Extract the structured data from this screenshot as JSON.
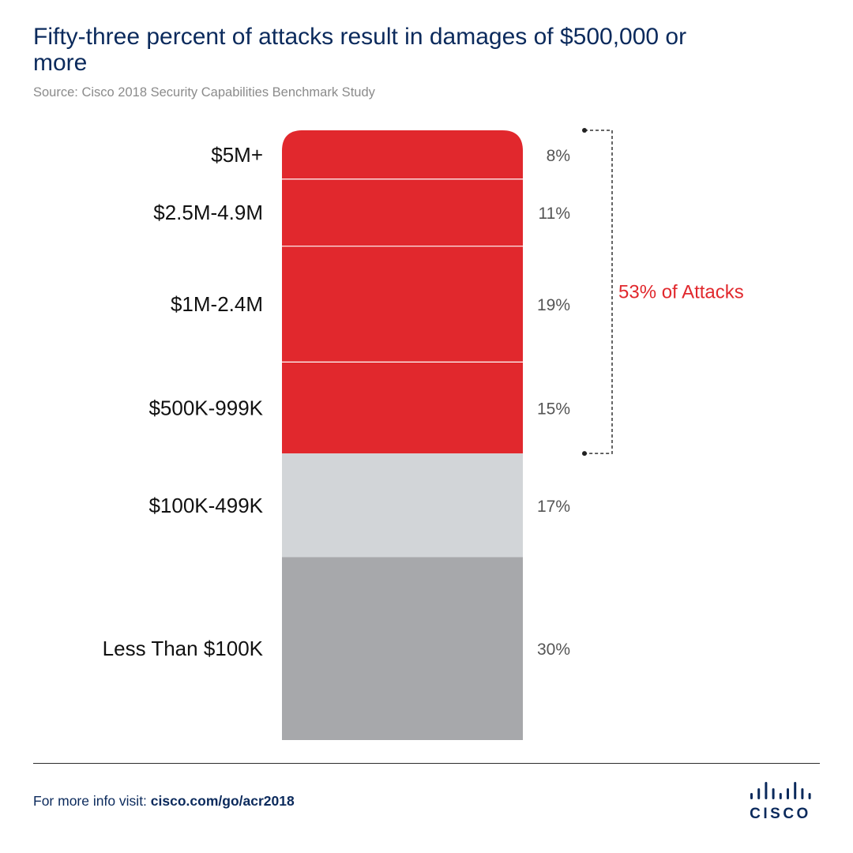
{
  "header": {
    "title": "Fifty-three percent of attacks result in damages of $500,000 or more",
    "source": "Source: Cisco 2018 Security Capabilities Benchmark Study"
  },
  "chart_data": {
    "type": "bar",
    "orientation": "stacked-vertical",
    "unit": "%",
    "categories": [
      "$5M+",
      "$2.5M-4.9M",
      "$1M-2.4M",
      "$500K-999K",
      "$100K-499K",
      "Less Than $100K"
    ],
    "values": [
      8,
      11,
      19,
      15,
      17,
      30
    ],
    "value_labels": [
      "8%",
      "11%",
      "19%",
      "15%",
      "17%",
      "30%"
    ],
    "segment_colors": [
      "#e1282d",
      "#e1282d",
      "#e1282d",
      "#e1282d",
      "#d2d5d8",
      "#a7a8ab"
    ],
    "bracket": {
      "label": "53% of Attacks",
      "from_category": "$5M+",
      "to_category": "$500K-999K",
      "color": "#e1282d"
    }
  },
  "footer": {
    "prefix": "For more info visit: ",
    "link": "cisco.com/go/acr2018"
  },
  "logo": {
    "text": "CISCO",
    "color": "#0b2a5c"
  }
}
